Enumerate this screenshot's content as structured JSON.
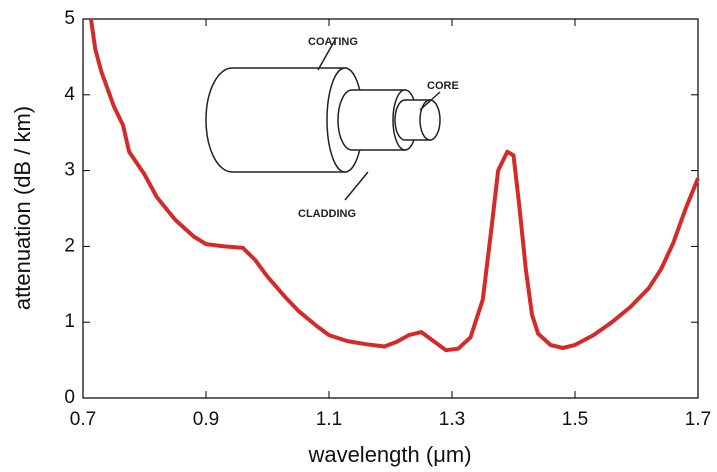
{
  "chart_data": {
    "type": "line",
    "x_label": "wavelength (μm)",
    "y_label": "attenuation (dB / km)",
    "annotations": [
      "COATING",
      "CORE",
      "CLADDING"
    ],
    "x": [
      0.713,
      0.72,
      0.73,
      0.75,
      0.765,
      0.775,
      0.8,
      0.82,
      0.85,
      0.88,
      0.9,
      0.93,
      0.96,
      0.98,
      1.0,
      1.03,
      1.05,
      1.08,
      1.1,
      1.13,
      1.16,
      1.19,
      1.21,
      1.23,
      1.25,
      1.27,
      1.29,
      1.31,
      1.33,
      1.35,
      1.365,
      1.375,
      1.39,
      1.4,
      1.41,
      1.42,
      1.43,
      1.44,
      1.46,
      1.48,
      1.5,
      1.53,
      1.56,
      1.59,
      1.62,
      1.64,
      1.66,
      1.68,
      1.7
    ],
    "series": [
      {
        "color": "#d42a2a",
        "values": [
          5.0,
          4.6,
          4.3,
          3.85,
          3.6,
          3.25,
          2.95,
          2.65,
          2.35,
          2.13,
          2.03,
          2.0,
          1.98,
          1.82,
          1.6,
          1.32,
          1.15,
          0.95,
          0.83,
          0.75,
          0.71,
          0.68,
          0.74,
          0.83,
          0.87,
          0.75,
          0.63,
          0.65,
          0.8,
          1.3,
          2.3,
          3.0,
          3.25,
          3.2,
          2.5,
          1.7,
          1.1,
          0.85,
          0.7,
          0.66,
          0.7,
          0.83,
          1.0,
          1.2,
          1.45,
          1.7,
          2.05,
          2.5,
          2.9
        ]
      }
    ],
    "xlim": [
      0.7,
      1.7
    ],
    "ylim": [
      0,
      5
    ],
    "xticks": [
      {
        "value": 0.7,
        "label": "0.7"
      },
      {
        "value": 0.9,
        "label": "0.9"
      },
      {
        "value": 1.1,
        "label": "1.1"
      },
      {
        "value": 1.3,
        "label": "1.3"
      },
      {
        "value": 1.5,
        "label": "1.5"
      },
      {
        "value": 1.7,
        "label": "1.7"
      }
    ],
    "yticks": [
      0,
      1,
      2,
      3,
      4,
      5
    ],
    "grid": false
  }
}
